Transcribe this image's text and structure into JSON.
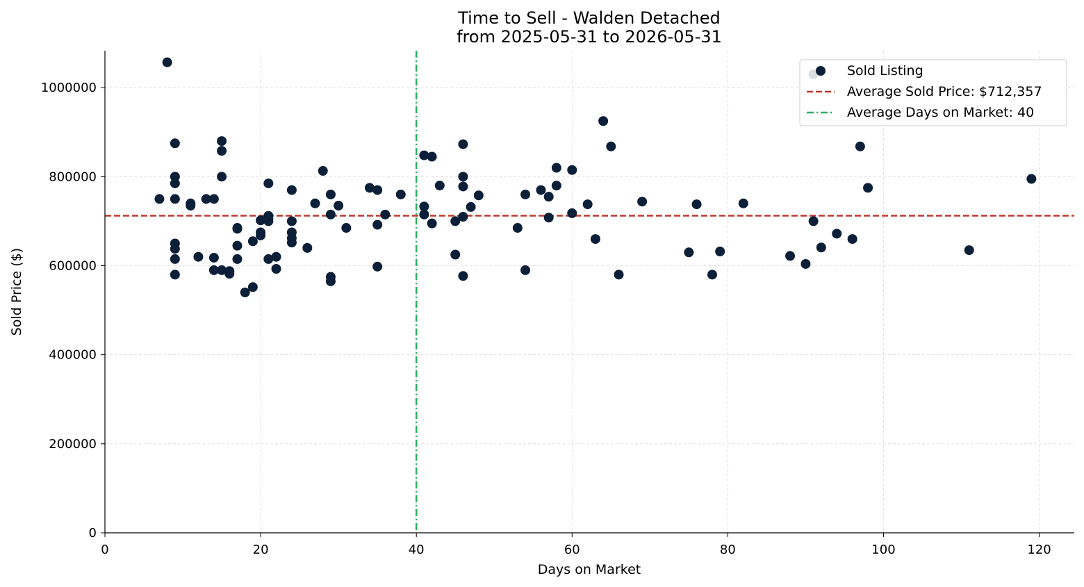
{
  "chart_data": {
    "type": "scatter",
    "title": "Time to Sell - Walden Detached",
    "subtitle": "from 2025-05-31 to 2026-05-31",
    "xlabel": "Days on Market",
    "ylabel": "Sold Price ($)",
    "xlim": [
      0,
      124.5
    ],
    "ylim": [
      0,
      1083000
    ],
    "xticks": [
      0,
      20,
      40,
      60,
      80,
      100,
      120
    ],
    "yticks": [
      0,
      200000,
      400000,
      600000,
      800000,
      1000000
    ],
    "grid": true,
    "legend_position": "top-right",
    "colors": {
      "points": "#0b1f38",
      "avg_price_line": "#c0392b",
      "avg_days_line": "#27ae60",
      "grid": "#d9d9d9"
    },
    "series": [
      {
        "name": "Sold Listing",
        "points": [
          [
            7,
            750000
          ],
          [
            8,
            1057000
          ],
          [
            9,
            875000
          ],
          [
            9,
            800000
          ],
          [
            9,
            785000
          ],
          [
            9,
            750000
          ],
          [
            9,
            650000
          ],
          [
            9,
            638000
          ],
          [
            9,
            615000
          ],
          [
            9,
            580000
          ],
          [
            11,
            740000
          ],
          [
            11,
            735000
          ],
          [
            12,
            620000
          ],
          [
            13,
            750000
          ],
          [
            14,
            750000
          ],
          [
            14,
            618000
          ],
          [
            14,
            590000
          ],
          [
            15,
            880000
          ],
          [
            15,
            858000
          ],
          [
            15,
            800000
          ],
          [
            15,
            590000
          ],
          [
            16,
            588000
          ],
          [
            16,
            582000
          ],
          [
            17,
            685000
          ],
          [
            17,
            683000
          ],
          [
            17,
            645000
          ],
          [
            17,
            615000
          ],
          [
            18,
            540000
          ],
          [
            19,
            655000
          ],
          [
            19,
            552000
          ],
          [
            20,
            702000
          ],
          [
            20,
            675000
          ],
          [
            20,
            668000
          ],
          [
            21,
            785000
          ],
          [
            21,
            712000
          ],
          [
            21,
            705000
          ],
          [
            21,
            700000
          ],
          [
            21,
            615000
          ],
          [
            22,
            620000
          ],
          [
            22,
            593000
          ],
          [
            24,
            770000
          ],
          [
            24,
            700000
          ],
          [
            24,
            675000
          ],
          [
            24,
            662000
          ],
          [
            24,
            652000
          ],
          [
            26,
            640000
          ],
          [
            27,
            740000
          ],
          [
            28,
            813000
          ],
          [
            29,
            760000
          ],
          [
            29,
            715000
          ],
          [
            29,
            575000
          ],
          [
            29,
            565000
          ],
          [
            30,
            735000
          ],
          [
            31,
            685000
          ],
          [
            34,
            775000
          ],
          [
            35,
            770000
          ],
          [
            35,
            692000
          ],
          [
            35,
            598000
          ],
          [
            36,
            715000
          ],
          [
            38,
            760000
          ],
          [
            41,
            848000
          ],
          [
            41,
            733000
          ],
          [
            41,
            715000
          ],
          [
            42,
            845000
          ],
          [
            42,
            695000
          ],
          [
            43,
            780000
          ],
          [
            45,
            700000
          ],
          [
            45,
            625000
          ],
          [
            46,
            873000
          ],
          [
            46,
            800000
          ],
          [
            46,
            778000
          ],
          [
            46,
            710000
          ],
          [
            46,
            577000
          ],
          [
            47,
            732000
          ],
          [
            48,
            758000
          ],
          [
            53,
            685000
          ],
          [
            54,
            760000
          ],
          [
            54,
            590000
          ],
          [
            56,
            770000
          ],
          [
            57,
            755000
          ],
          [
            57,
            708000
          ],
          [
            58,
            820000
          ],
          [
            58,
            780000
          ],
          [
            60,
            815000
          ],
          [
            60,
            718000
          ],
          [
            62,
            738000
          ],
          [
            63,
            660000
          ],
          [
            64,
            925000
          ],
          [
            65,
            868000
          ],
          [
            66,
            580000
          ],
          [
            69,
            744000
          ],
          [
            75,
            630000
          ],
          [
            76,
            738000
          ],
          [
            78,
            580000
          ],
          [
            79,
            632000
          ],
          [
            82,
            740000
          ],
          [
            88,
            622000
          ],
          [
            90,
            604000
          ],
          [
            91,
            1030000
          ],
          [
            91,
            700000
          ],
          [
            92,
            641000
          ],
          [
            94,
            672000
          ],
          [
            96,
            660000
          ],
          [
            97,
            868000
          ],
          [
            98,
            775000
          ],
          [
            111,
            635000
          ],
          [
            119,
            795000
          ]
        ]
      }
    ],
    "reference_lines": {
      "avg_price": {
        "label": "Average Sold Price: $712,357",
        "value": 712357,
        "style": "dashed"
      },
      "avg_days": {
        "label": "Average Days on Market: 40",
        "value": 40,
        "style": "dashdot"
      }
    }
  }
}
